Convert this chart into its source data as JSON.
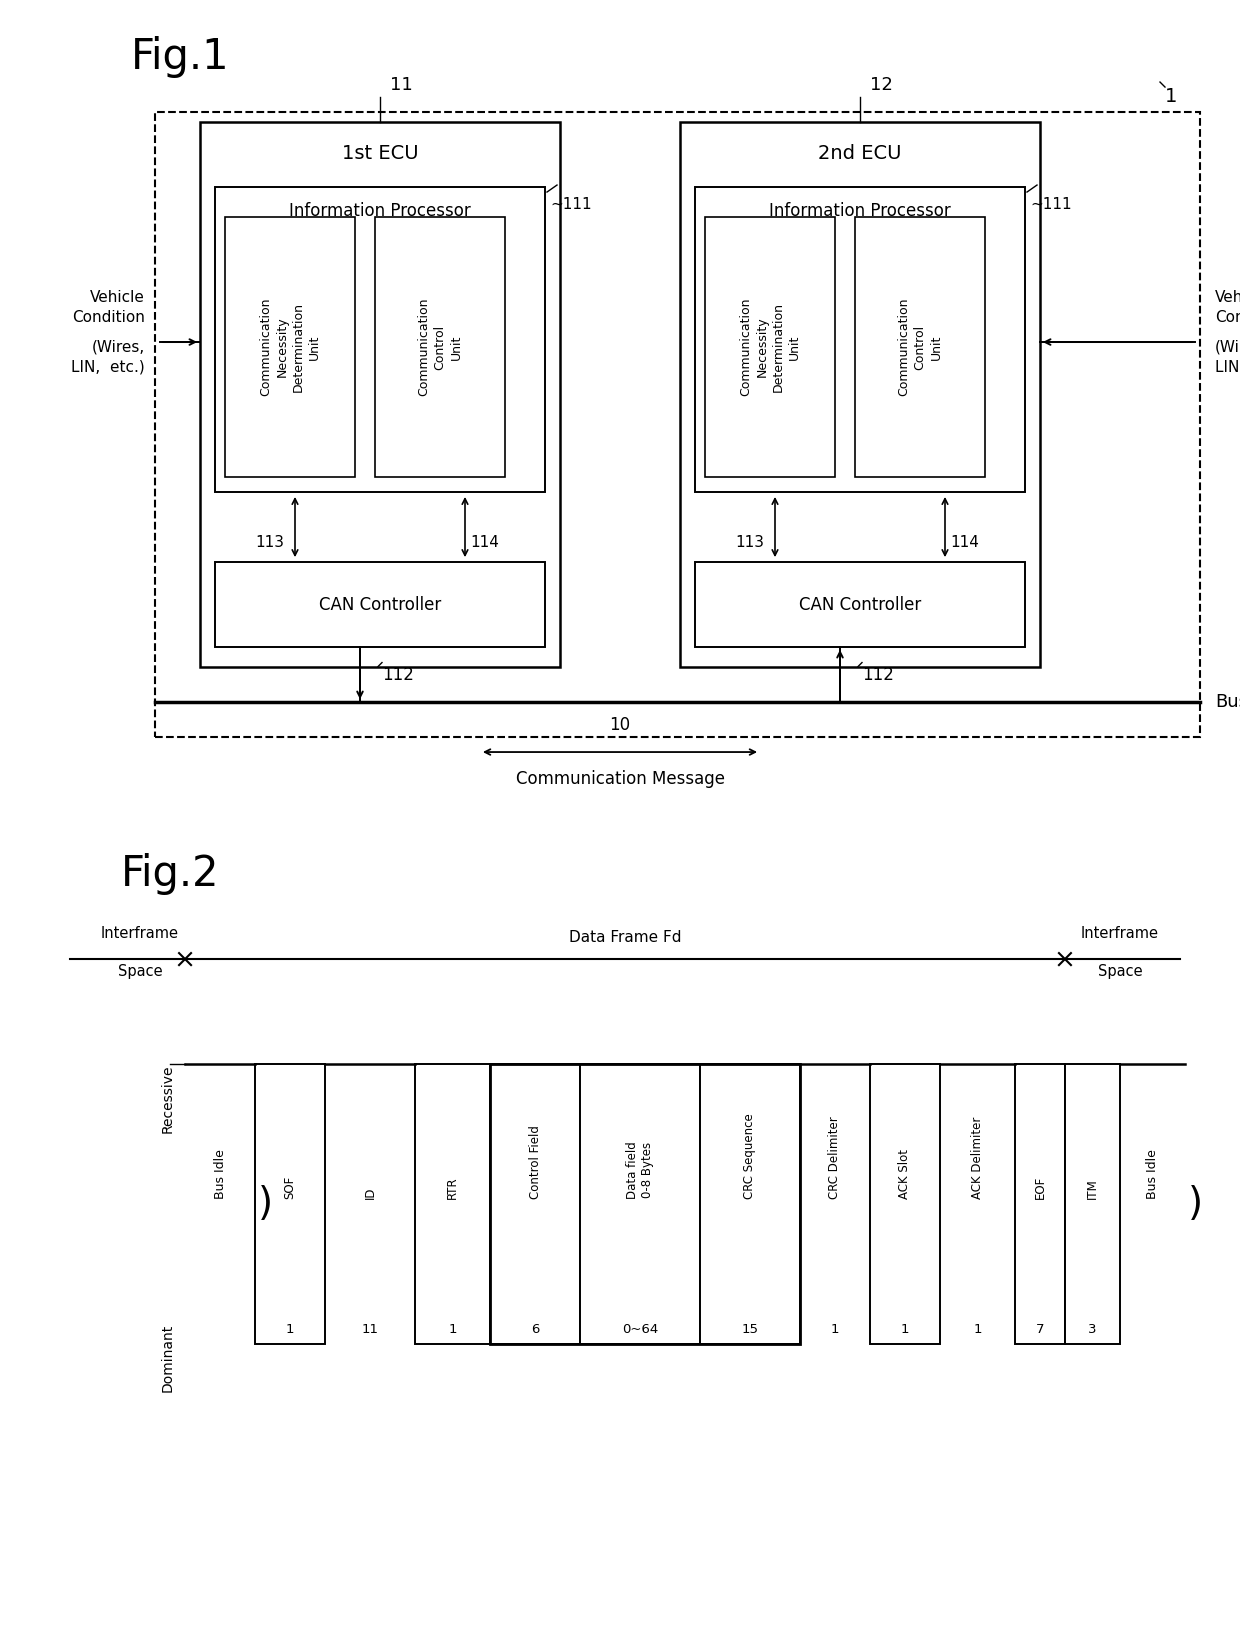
{
  "fig_title1": "Fig.1",
  "fig_title2": "Fig.2",
  "ecu1_title": "1st ECU",
  "ecu2_title": "2nd ECU",
  "info_proc_title": "Information Processor",
  "comm_nec_title": "Communication\nNecessity\nDetermination\nUnit",
  "comm_ctrl_title": "Communication\nControl\nUnit",
  "can_ctrl_title": "CAN Controller",
  "vehicle_cond_line1": "Vehicle",
  "vehicle_cond_line2": "Condition",
  "vehicle_cond_line3": "(Wires,",
  "vehicle_cond_line4": "LIN,  etc.)",
  "bus_label": "Bus",
  "comm_msg": "Communication Message",
  "data_frame_fd": "Data Frame Fd",
  "recessive": "Recessive",
  "dominant": "Dominant",
  "interframe": "Interframe",
  "space": "Space",
  "label1": "1",
  "label11": "11",
  "label12": "12",
  "label111": "111",
  "label112": "112",
  "label113": "113",
  "label114": "114",
  "label10": "10",
  "fields": [
    "Bus Idle",
    "SOF",
    "ID",
    "RTR",
    "Control Field",
    "Data field\n0-8 Bytes",
    "CRC Sequence",
    "CRC Delimiter",
    "ACK Slot",
    "ACK Delimiter",
    "EOF",
    "ITM",
    "Bus Idle"
  ],
  "bits": [
    "",
    "1",
    "11",
    "1",
    "6",
    "0~64",
    "15",
    "1",
    "1",
    "1",
    "7",
    "3",
    ""
  ],
  "is_recessive": [
    true,
    false,
    true,
    false,
    false,
    false,
    false,
    true,
    false,
    true,
    false,
    false,
    true
  ],
  "bg_color": "#ffffff",
  "line_color": "#000000"
}
